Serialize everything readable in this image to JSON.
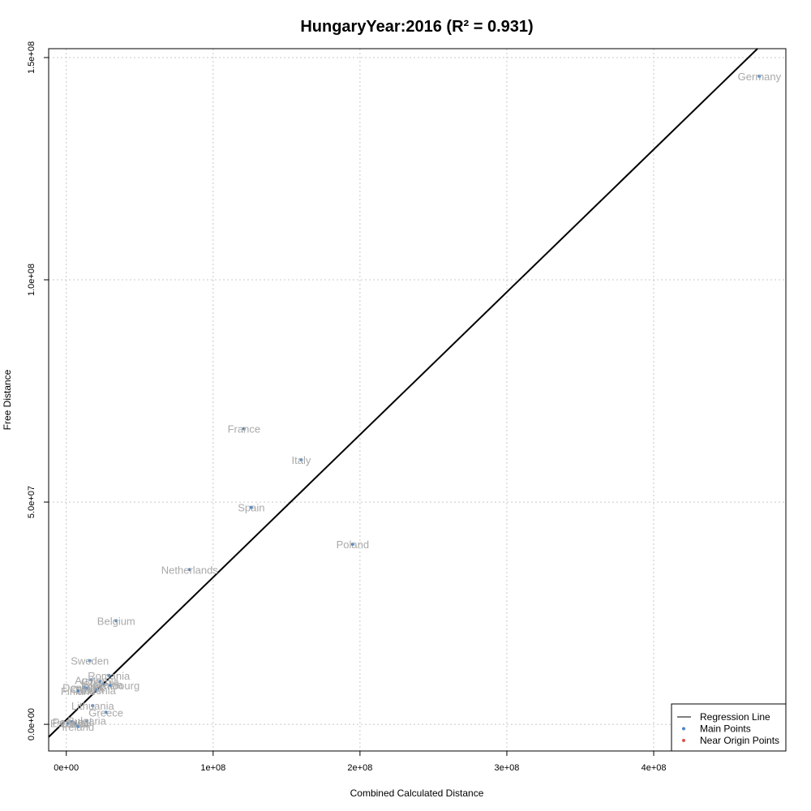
{
  "chart_data": {
    "type": "scatter",
    "title": "HungaryYear:2016 (R² = 0.931)",
    "xlabel": "Combined Calculated Distance",
    "ylabel": "Free Distance",
    "xlim": [
      -12000000,
      490000000
    ],
    "ylim": [
      -6000000,
      152000000
    ],
    "xticks": [
      {
        "value": 0,
        "label": "0e+00"
      },
      {
        "value": 100000000,
        "label": "1e+08"
      },
      {
        "value": 200000000,
        "label": "2e+08"
      },
      {
        "value": 300000000,
        "label": "3e+08"
      },
      {
        "value": 400000000,
        "label": "4e+08"
      }
    ],
    "yticks": [
      {
        "value": 0,
        "label": "0.0e+00"
      },
      {
        "value": 50000000,
        "label": "5.0e+07"
      },
      {
        "value": 100000000,
        "label": "1.0e+08"
      },
      {
        "value": 150000000,
        "label": "1.5e+08"
      }
    ],
    "grid": true,
    "regression": {
      "slope": 0.3208,
      "intercept": 1000000,
      "color": "#000000"
    },
    "main_color": "#4a86c8",
    "near_origin_color": "#d9534f",
    "label_color": "#a9a9a9",
    "points": [
      {
        "label": "Germany",
        "x": 472000000,
        "y": 145800000
      },
      {
        "label": "France",
        "x": 121000000,
        "y": 66500000
      },
      {
        "label": "Italy",
        "x": 160000000,
        "y": 59500000
      },
      {
        "label": "Spain",
        "x": 126000000,
        "y": 48800000
      },
      {
        "label": "Poland",
        "x": 195000000,
        "y": 40500000
      },
      {
        "label": "Netherlands",
        "x": 84000000,
        "y": 34800000
      },
      {
        "label": "Belgium",
        "x": 34000000,
        "y": 23300000
      },
      {
        "label": "Sweden",
        "x": 16000000,
        "y": 14300000
      },
      {
        "label": "Romania",
        "x": 29000000,
        "y": 11000000
      },
      {
        "label": "Austria",
        "x": 17000000,
        "y": 10000000
      },
      {
        "label": "Czechia",
        "x": 23000000,
        "y": 9600000
      },
      {
        "label": "Slovakia",
        "x": 25000000,
        "y": 9000000
      },
      {
        "label": "Luxembourg",
        "x": 30000000,
        "y": 8800000
      },
      {
        "label": "Denmark",
        "x": 12000000,
        "y": 8300000
      },
      {
        "label": "Croatia",
        "x": 14000000,
        "y": 8000000
      },
      {
        "label": "Slovenia",
        "x": 20000000,
        "y": 7700000
      },
      {
        "label": "Finland",
        "x": 8000000,
        "y": 7500000
      },
      {
        "label": "Lithuania",
        "x": 18000000,
        "y": 4200000
      },
      {
        "label": "Greece",
        "x": 27000000,
        "y": 2700000
      },
      {
        "label": "Bulgaria",
        "x": 14000000,
        "y": 800000
      },
      {
        "label": "Portugal",
        "x": 4000000,
        "y": 600000
      },
      {
        "label": "Estonia",
        "x": 1000000,
        "y": 300000
      },
      {
        "label": "Latvia",
        "x": 6000000,
        "y": 200000
      },
      {
        "label": "Ireland",
        "x": 8000000,
        "y": -500000
      }
    ],
    "legend": {
      "position": "bottom-right",
      "entries": [
        {
          "label": "Regression Line",
          "kind": "line"
        },
        {
          "label": "Main Points",
          "kind": "main"
        },
        {
          "label": "Near Origin Points",
          "kind": "near"
        }
      ]
    }
  }
}
